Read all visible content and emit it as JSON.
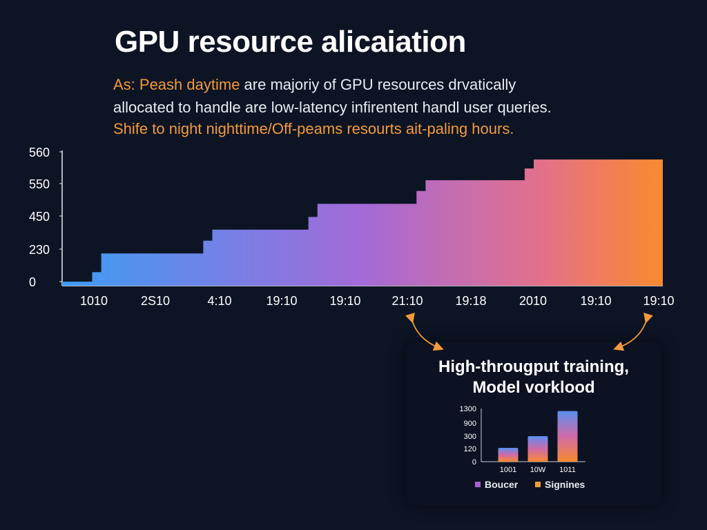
{
  "title": "GPU resource alicaiation",
  "description": {
    "line1_prefix": "As: Peash daytime",
    "line1_rest": " are majoriy of GPU resources drvatically",
    "line2": "allocated to handle are low-latency infirentent handl user queries.",
    "line3": "Shife to night nighttime/Off-peams resourts ait-paling hours."
  },
  "colors": {
    "background": "#0d1424",
    "gradient_start": "#3d9cf5",
    "gradient_mid": "#a46ad8",
    "gradient_end": "#f98a2e",
    "accent_orange": "#f39a3c"
  },
  "chart_data": [
    {
      "type": "area",
      "title": "",
      "xlabel": "",
      "ylabel": "",
      "y_ticks": [
        "560",
        "550",
        "450",
        "230",
        "0"
      ],
      "x_ticks": [
        "1010",
        "2S10",
        "4:10",
        "19:10",
        "19:10",
        "21:10",
        "19:18",
        "2010",
        "19:10",
        "19:10"
      ],
      "y_values": [
        18,
        18,
        60,
        60,
        143,
        143,
        143,
        143,
        143,
        143,
        143,
        162,
        162,
        249,
        249,
        249,
        249,
        249,
        249,
        249,
        249,
        249,
        249,
        249,
        249,
        249,
        249,
        249,
        252,
        252,
        252,
        275,
        275,
        275,
        363,
        363,
        363,
        363,
        363,
        363,
        363,
        363,
        363,
        363,
        363,
        363,
        363,
        363,
        363,
        363,
        363,
        363,
        363,
        363,
        363,
        363,
        363,
        363,
        363,
        363,
        363,
        363,
        363,
        363,
        363,
        363,
        363,
        363,
        363,
        363,
        363,
        363,
        363,
        363,
        363,
        363,
        363,
        363,
        363,
        363,
        363,
        363,
        363,
        363,
        363,
        363,
        363,
        363,
        363,
        363,
        363,
        363,
        363,
        363,
        363,
        363,
        363,
        363,
        363,
        363,
        363,
        363,
        363,
        363,
        363,
        363,
        363,
        363,
        363,
        363,
        363,
        363,
        363,
        363,
        363,
        363,
        363,
        363,
        363,
        363,
        363,
        363,
        363,
        363,
        363,
        363,
        363,
        363,
        363,
        363,
        363,
        363,
        363,
        363,
        363,
        363,
        363,
        363,
        363,
        363,
        363,
        363,
        363
      ],
      "steps": [
        {
          "x": 0.0,
          "y": 18
        },
        {
          "x": 0.05,
          "y": 18
        },
        {
          "x": 0.05,
          "y": 60
        },
        {
          "x": 0.065,
          "y": 60
        },
        {
          "x": 0.065,
          "y": 143
        },
        {
          "x": 0.235,
          "y": 143
        },
        {
          "x": 0.235,
          "y": 200
        },
        {
          "x": 0.25,
          "y": 200
        },
        {
          "x": 0.25,
          "y": 249
        },
        {
          "x": 0.41,
          "y": 249
        },
        {
          "x": 0.41,
          "y": 305
        },
        {
          "x": 0.425,
          "y": 305
        },
        {
          "x": 0.425,
          "y": 363
        },
        {
          "x": 0.59,
          "y": 363
        },
        {
          "x": 0.59,
          "y": 420
        },
        {
          "x": 0.605,
          "y": 420
        },
        {
          "x": 0.605,
          "y": 468
        },
        {
          "x": 0.77,
          "y": 468
        },
        {
          "x": 0.77,
          "y": 520
        },
        {
          "x": 0.785,
          "y": 520
        },
        {
          "x": 0.785,
          "y": 560
        },
        {
          "x": 1.0,
          "y": 560
        }
      ],
      "ylim": [
        0,
        600
      ]
    },
    {
      "type": "bar",
      "title": "High-througput training, Model vorklood",
      "categories": [
        "1001",
        "10W",
        "1011"
      ],
      "values": [
        130,
        300,
        1230
      ],
      "y_ticks": [
        "1300",
        "900",
        "300",
        "120",
        "0"
      ],
      "ylim": [
        0,
        1300
      ],
      "legend": [
        "Boucer",
        "Signines"
      ],
      "legend_colors": [
        "#b05cd6",
        "#f39a3c"
      ]
    }
  ]
}
